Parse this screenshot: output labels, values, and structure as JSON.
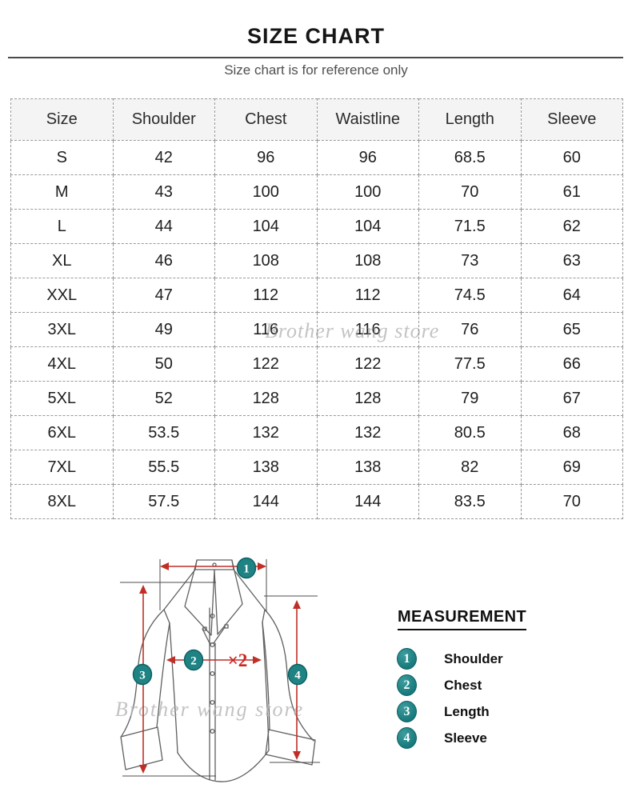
{
  "header": {
    "title": "SIZE CHART",
    "subtitle": "Size chart is for reference only"
  },
  "watermark": {
    "text": "Brother wang store"
  },
  "chart_data": {
    "type": "table",
    "title": "SIZE CHART",
    "columns": [
      "Size",
      "Shoulder",
      "Chest",
      "Waistline",
      "Length",
      "Sleeve"
    ],
    "rows": [
      [
        "S",
        "42",
        "96",
        "96",
        "68.5",
        "60"
      ],
      [
        "M",
        "43",
        "100",
        "100",
        "70",
        "61"
      ],
      [
        "L",
        "44",
        "104",
        "104",
        "71.5",
        "62"
      ],
      [
        "XL",
        "46",
        "108",
        "108",
        "73",
        "63"
      ],
      [
        "XXL",
        "47",
        "112",
        "112",
        "74.5",
        "64"
      ],
      [
        "3XL",
        "49",
        "116",
        "116",
        "76",
        "65"
      ],
      [
        "4XL",
        "50",
        "122",
        "122",
        "77.5",
        "66"
      ],
      [
        "5XL",
        "52",
        "128",
        "128",
        "79",
        "67"
      ],
      [
        "6XL",
        "53.5",
        "132",
        "132",
        "80.5",
        "68"
      ],
      [
        "7XL",
        "55.5",
        "138",
        "138",
        "82",
        "69"
      ],
      [
        "8XL",
        "57.5",
        "144",
        "144",
        "83.5",
        "70"
      ]
    ]
  },
  "diagram": {
    "multiplier": "×2"
  },
  "measurement": {
    "heading": "MEASUREMENT",
    "items": [
      {
        "num": "1",
        "label": "Shoulder"
      },
      {
        "num": "2",
        "label": "Chest"
      },
      {
        "num": "3",
        "label": "Length"
      },
      {
        "num": "4",
        "label": "Sleeve"
      }
    ]
  },
  "colors": {
    "accent_teal": "#1f8384",
    "arrow_red": "#bf2f28",
    "watermark_gray": "#b5b5b5"
  }
}
